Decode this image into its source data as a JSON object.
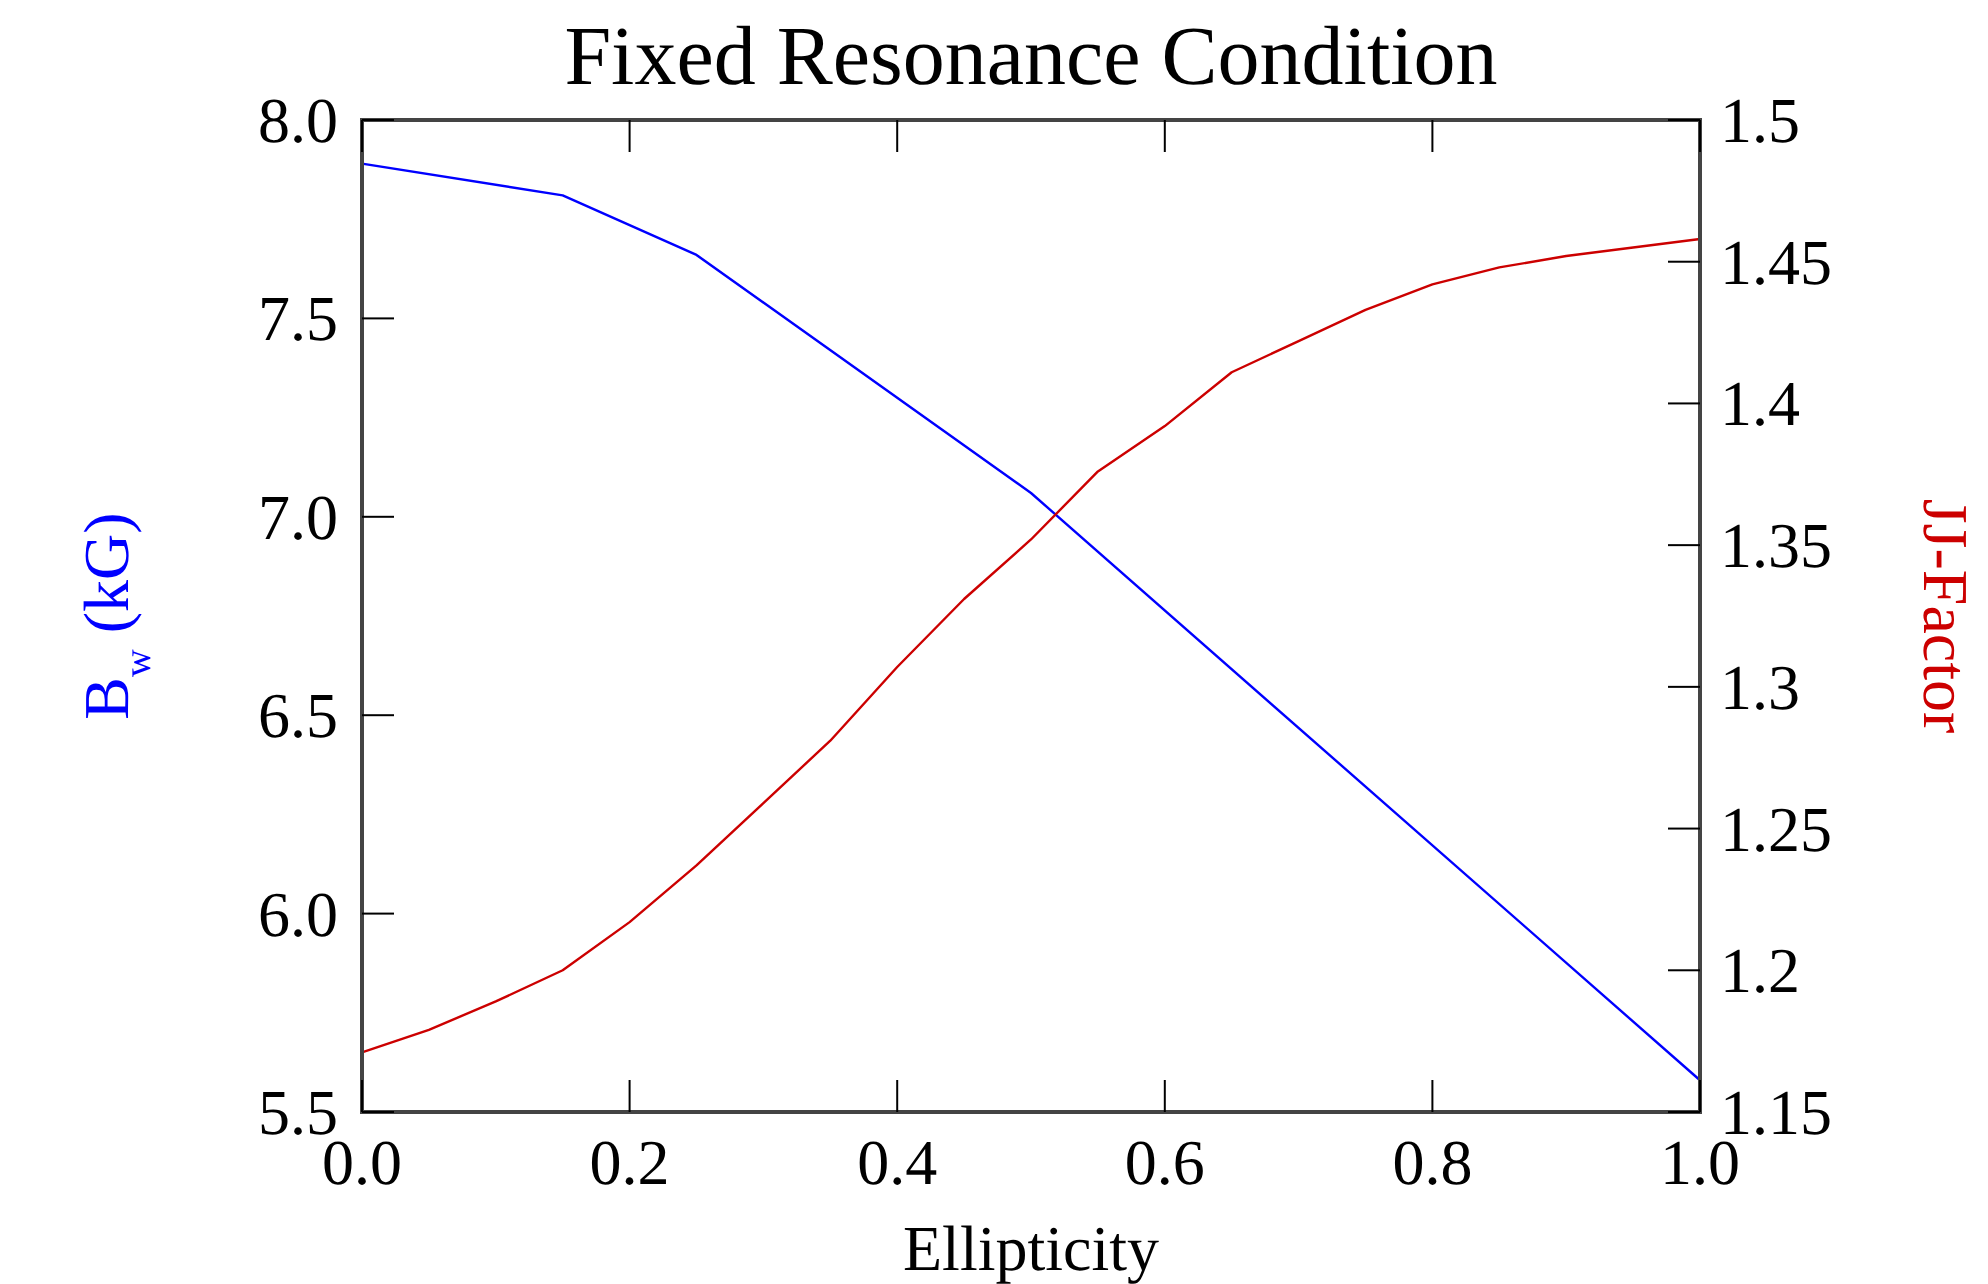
{
  "chart_data": {
    "type": "line",
    "title": "Fixed Resonance Condition",
    "xlabel": "Ellipticity",
    "ylabel": "B$_{w}$ (kG)",
    "y2label": "JJ-Factor",
    "xlim": [
      0,
      1
    ],
    "xticks": [
      {
        "value": 0,
        "label": "0.0"
      },
      0.2,
      0.4,
      0.6,
      0.8,
      {
        "value": 1,
        "label": "1.0"
      }
    ],
    "ylim": [
      5.5,
      8
    ],
    "yticks": [
      5.5,
      {
        "value": 6,
        "label": "6.0"
      },
      6.5,
      {
        "value": 7,
        "label": "7.0"
      },
      7.5,
      {
        "value": 8,
        "label": "8.0"
      }
    ],
    "y2lim": [
      1.15,
      1.5
    ],
    "y2ticks": [
      1.15,
      1.2,
      1.25,
      1.3,
      1.35,
      1.4,
      1.45,
      1.5
    ],
    "grid": false,
    "series": [
      {
        "color": "#0000ff",
        "x": [
          0,
          0.15,
          0.25,
          0.5,
          1.0
        ],
        "values": [
          7.89,
          7.81,
          7.66,
          7.06,
          5.58
        ]
      },
      {
        "color": "#cc0000",
        "axis": "y2",
        "x": [
          0,
          0.05,
          0.1,
          0.15,
          0.2,
          0.25,
          0.3,
          0.35,
          0.4,
          0.45,
          0.5,
          0.55,
          0.6,
          0.65,
          0.7,
          0.75,
          0.8,
          0.85,
          0.9,
          0.95,
          1.0
        ],
        "values": [
          1.171,
          1.179,
          1.189,
          1.2,
          1.217,
          1.237,
          1.259,
          1.281,
          1.307,
          1.331,
          1.352,
          1.376,
          1.392,
          1.411,
          1.422,
          1.433,
          1.442,
          1.448,
          1.452,
          1.455,
          1.458
        ]
      }
    ]
  }
}
